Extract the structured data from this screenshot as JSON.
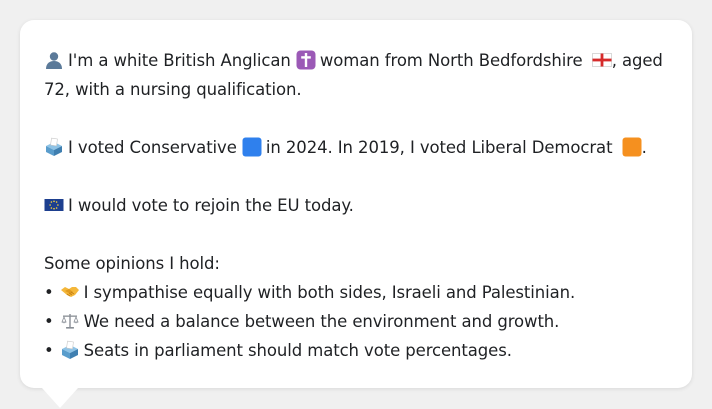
{
  "card": {
    "intro_a": "I'm a white British Anglican",
    "intro_b": "woman from North Bedfordshire",
    "intro_c": ", aged 72, with a nursing qualification.",
    "vote_a": "I voted Conservative",
    "vote_b": "in 2024. In 2019, I voted Liberal Democrat",
    "vote_c": ".",
    "eu": "I would vote to rejoin the EU today.",
    "opinions_heading": "Some opinions I hold:",
    "bullet_char": "•",
    "opinions": [
      {
        "icon": "handshake-icon",
        "text": "I sympathise equally with both sides, Israeli and Palestinian."
      },
      {
        "icon": "balance-scale-icon",
        "text": "We need a balance between the environment and growth."
      },
      {
        "icon": "ballot-box-icon",
        "text": "Seats in parliament should match vote percentages."
      }
    ]
  },
  "icons": {
    "person": "person-icon",
    "cross": "latin-cross-icon",
    "flag": "england-flag-icon",
    "ballot": "ballot-box-icon",
    "blue_square": "blue-square-icon",
    "orange_square": "orange-square-icon",
    "eu_flag": "eu-flag-icon"
  },
  "colors": {
    "conservative": "#2f80ed",
    "libdem": "#f5901f",
    "cross_bg": "#9b59b6",
    "eu_blue": "#1d3f8f"
  }
}
